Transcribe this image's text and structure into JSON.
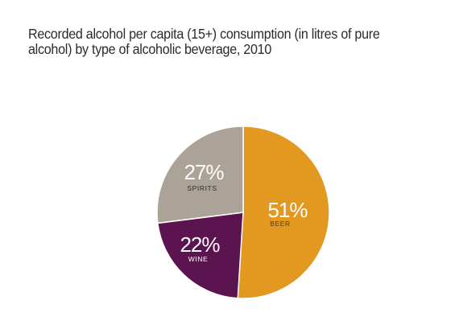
{
  "chart_data": {
    "type": "pie",
    "title": "Recorded alcohol per capita (15+) consumption (in litres of pure alcohol) by type of alcoholic beverage, 2010",
    "categories": [
      "BEER",
      "WINE",
      "SPIRITS"
    ],
    "values": [
      51,
      22,
      27
    ],
    "value_labels": [
      "51%",
      "22%",
      "27%"
    ],
    "colors": [
      "#E3981F",
      "#5B1450",
      "#ACA398"
    ],
    "category_label_colors": [
      "#5a3a10",
      "#ffffff",
      "#2b2b2b"
    ],
    "start_angle": "12 o'clock",
    "direction": "clockwise",
    "legend": "none"
  }
}
